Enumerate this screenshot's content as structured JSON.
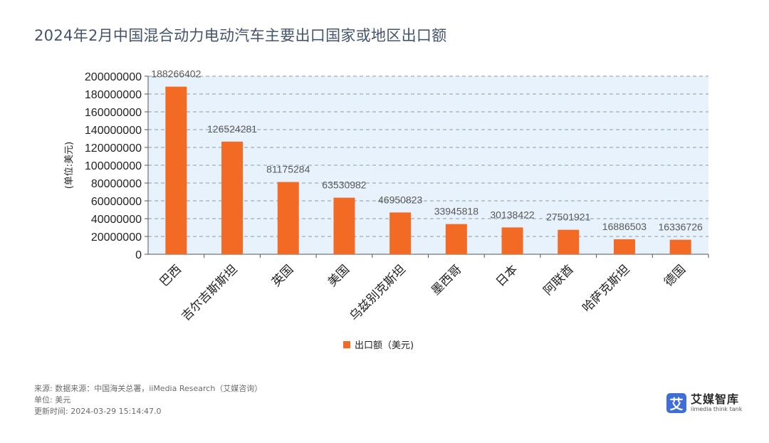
{
  "chart_data": {
    "type": "bar",
    "title": "2024年2月中国混合动力电动汽车主要出口国家或地区出口额",
    "ylabel": "(单位:美元)",
    "xlabel": "",
    "ylim": [
      0,
      200000000
    ],
    "yticks": [
      0,
      20000000,
      40000000,
      60000000,
      80000000,
      100000000,
      120000000,
      140000000,
      160000000,
      180000000,
      200000000
    ],
    "categories": [
      "巴西",
      "吉尔吉斯斯坦",
      "英国",
      "美国",
      "乌兹别克斯坦",
      "墨西哥",
      "日本",
      "阿联酋",
      "哈萨克斯坦",
      "德国"
    ],
    "series": [
      {
        "name": "出口额（美元)",
        "values": [
          188266402,
          126524281,
          81175284,
          63530982,
          46950823,
          33945818,
          30138422,
          27501921,
          16886503,
          16336726
        ],
        "color": "#f26a24"
      }
    ],
    "legend_position": "bottom",
    "grid": true,
    "plot_background": "#e8f2fc"
  },
  "footer": {
    "source": "来源: 数据来源：中国海关总署，iiMedia Research（艾媒咨询）",
    "unit": "单位: 美元",
    "updated": "更新时间: 2024-03-29 15:14:47.0"
  },
  "brand": {
    "logo_char": "艾",
    "name": "艾媒智库",
    "sub": "iimedia think tank"
  }
}
